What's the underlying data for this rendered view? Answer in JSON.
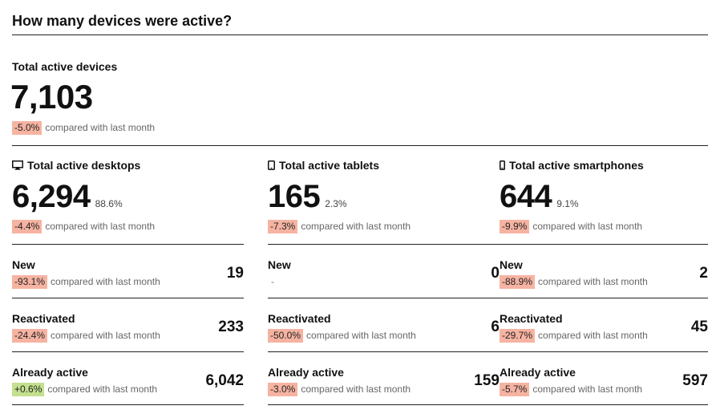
{
  "title": "How many devices were active?",
  "compare_text": "compared with last month",
  "total": {
    "label": "Total active devices",
    "value": "7,103",
    "change": "-5.0%"
  },
  "columns": [
    {
      "key": "desktops",
      "icon": "desktop-icon",
      "label": "Total active desktops",
      "value": "6,294",
      "share": "88.6%",
      "change": "-4.4%",
      "rows": [
        {
          "label": "New",
          "change": "-93.1%",
          "value": "19",
          "trend": "neg"
        },
        {
          "label": "Reactivated",
          "change": "-24.4%",
          "value": "233",
          "trend": "neg"
        },
        {
          "label": "Already active",
          "change": "+0.6%",
          "value": "6,042",
          "trend": "pos"
        }
      ]
    },
    {
      "key": "tablets",
      "icon": "tablet-icon",
      "label": "Total active tablets",
      "value": "165",
      "share": "2.3%",
      "change": "-7.3%",
      "rows": [
        {
          "label": "New",
          "change": "-",
          "value": "0",
          "trend": "none"
        },
        {
          "label": "Reactivated",
          "change": "-50.0%",
          "value": "6",
          "trend": "neg"
        },
        {
          "label": "Already active",
          "change": "-3.0%",
          "value": "159",
          "trend": "neg"
        }
      ]
    },
    {
      "key": "smartphones",
      "icon": "smartphone-icon",
      "label": "Total active smartphones",
      "value": "644",
      "share": "9.1%",
      "change": "-9.9%",
      "rows": [
        {
          "label": "New",
          "change": "-88.9%",
          "value": "2",
          "trend": "neg"
        },
        {
          "label": "Reactivated",
          "change": "-29.7%",
          "value": "45",
          "trend": "neg"
        },
        {
          "label": "Already active",
          "change": "-5.7%",
          "value": "597",
          "trend": "neg"
        }
      ]
    }
  ],
  "colors": {
    "negative_badge": "#f6b3a2",
    "positive_badge": "#c3e08f",
    "rule": "#222222"
  }
}
